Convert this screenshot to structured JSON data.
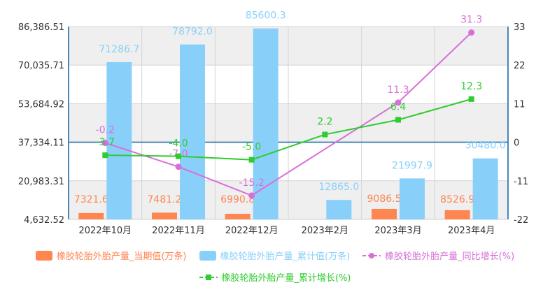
{
  "chart_data": {
    "type": "bar",
    "categories": [
      "2022年10月",
      "2022年11月",
      "2022年12月",
      "2023年2月",
      "2023年3月",
      "2023年4月"
    ],
    "left_axis": {
      "min": 4632.52,
      "max": 86386.51,
      "tick_labels": [
        "86,386.51",
        "70,035.71",
        "53,684.92",
        "37,334.11",
        "20,983.31",
        "4,632.52"
      ]
    },
    "right_axis": {
      "min": -22,
      "max": 33,
      "tick_labels": [
        "33",
        "22",
        "11",
        "0",
        "-11",
        "-22"
      ]
    },
    "series": [
      {
        "name": "橡胶轮胎外胎产量_当期值(万条)",
        "kind": "bar",
        "axis": "left",
        "color": "#ff8551",
        "values": [
          7321.6,
          7481.2,
          6990.8,
          null,
          9086.5,
          8526.9
        ],
        "labels": [
          "7321.6",
          "7481.2",
          "6990.8",
          "",
          "9086.5",
          "8526.9"
        ]
      },
      {
        "name": "橡胶轮胎外胎产量_累计值(万条)",
        "kind": "bar",
        "axis": "left",
        "color": "#88d0fa",
        "values": [
          71286.7,
          78792.0,
          85600.3,
          12865.0,
          21997.9,
          30480.0
        ],
        "labels": [
          "71286.7",
          "78792.0",
          "85600.3",
          "12865.0",
          "21997.9",
          "30480.0"
        ]
      },
      {
        "name": "橡胶轮胎外胎产量_同比增长(%)",
        "kind": "line",
        "axis": "right",
        "color": "#d86fd8",
        "values": [
          -0.2,
          -7.0,
          -15.2,
          null,
          11.3,
          31.3
        ],
        "labels": [
          "-0.2",
          "-7.0",
          "-15.2",
          "",
          "11.3",
          "31.3"
        ]
      },
      {
        "name": "橡胶轮胎外胎产量_累计增长(%)",
        "kind": "line",
        "axis": "right",
        "color": "#2ecc2e",
        "values": [
          -3.7,
          -4.0,
          -5.0,
          2.2,
          6.4,
          12.3
        ],
        "labels": [
          "-3.7",
          "-4.0",
          "-5.0",
          "2.2",
          "6.4",
          "12.3"
        ]
      }
    ],
    "grid": true,
    "legend_position": "bottom"
  }
}
